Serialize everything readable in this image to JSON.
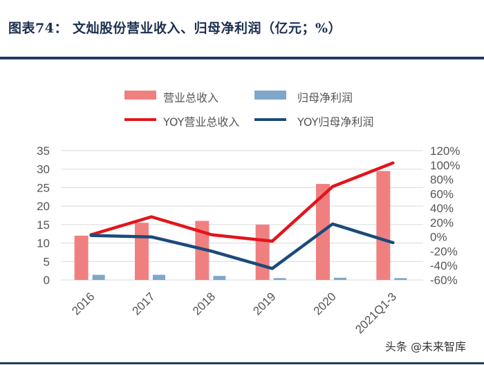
{
  "title": "图表74：  文灿股份营业收入、归母净利润（亿元；%）",
  "watermark": "头条 @未来智库",
  "colors": {
    "revenue_bar": "#f08080",
    "profit_bar": "#7fa7c9",
    "yoy_revenue_line": "#e3141b",
    "yoy_profit_line": "#1b4a7a",
    "title_rule": "#1f3a63"
  },
  "chart_data": {
    "type": "bar+line",
    "categories": [
      "2016",
      "2017",
      "2018",
      "2019",
      "2020",
      "2021Q1-3"
    ],
    "series": [
      {
        "name": "营业总收入",
        "type": "bar",
        "axis": "left",
        "values": [
          12,
          15.5,
          16,
          15,
          26,
          29.5
        ]
      },
      {
        "name": "归母净利润",
        "type": "bar",
        "axis": "left",
        "values": [
          1.4,
          1.4,
          1.1,
          0.5,
          0.6,
          0.5
        ]
      },
      {
        "name": "YOY营业总收入",
        "type": "line",
        "axis": "right",
        "values": [
          3,
          28,
          3,
          -6,
          70,
          103
        ]
      },
      {
        "name": "YOY归母净利润",
        "type": "line",
        "axis": "right",
        "values": [
          2,
          0,
          -20,
          -44,
          18,
          -8
        ]
      }
    ],
    "y_left": {
      "min": 0,
      "max": 35,
      "ticks": [
        "0",
        "5",
        "10",
        "15",
        "20",
        "25",
        "30",
        "35"
      ]
    },
    "y_right": {
      "min": -60,
      "max": 120,
      "ticks": [
        "-60%",
        "-40%",
        "-20%",
        "0%",
        "20%",
        "40%",
        "60%",
        "80%",
        "100%",
        "120%"
      ]
    },
    "grid": true,
    "legend_position": "top"
  }
}
